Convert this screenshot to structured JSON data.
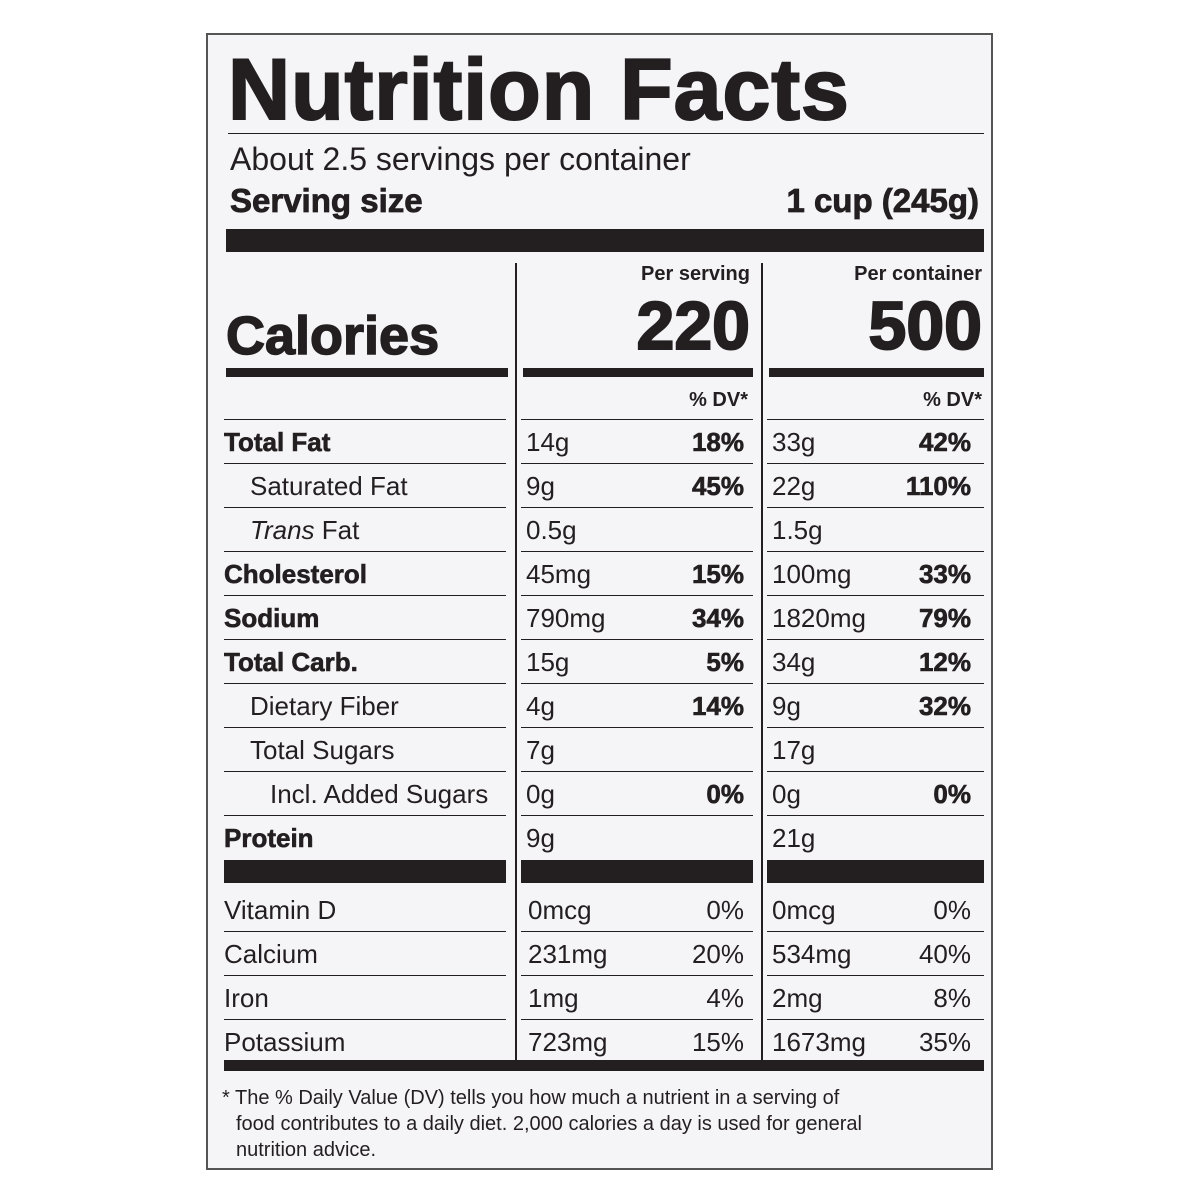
{
  "title": "Nutrition Facts",
  "servings_per_container": "About 2.5 servings per container",
  "serving_size_label": "Serving size",
  "serving_size_value": "1 cup (245g)",
  "calories_label": "Calories",
  "per_serving_label": "Per serving",
  "per_container_label": "Per container",
  "calories_per_serving": "220",
  "calories_per_container": "500",
  "dv_header": "% DV*",
  "nutrients": [
    {
      "name": "Total Fat",
      "bold": true,
      "indent": 0,
      "serving": "14g",
      "serving_dv": "18%",
      "container": "33g",
      "container_dv": "42%"
    },
    {
      "name": "Saturated Fat",
      "bold": false,
      "indent": 1,
      "serving": "9g",
      "serving_dv": "45%",
      "container": "22g",
      "container_dv": "110%"
    },
    {
      "name_italic": "Trans",
      "name": " Fat",
      "bold": false,
      "indent": 1,
      "serving": "0.5g",
      "serving_dv": "",
      "container": "1.5g",
      "container_dv": ""
    },
    {
      "name": "Cholesterol",
      "bold": true,
      "indent": 0,
      "serving": "45mg",
      "serving_dv": "15%",
      "container": "100mg",
      "container_dv": "33%"
    },
    {
      "name": "Sodium",
      "bold": true,
      "indent": 0,
      "serving": "790mg",
      "serving_dv": "34%",
      "container": "1820mg",
      "container_dv": "79%"
    },
    {
      "name": "Total Carb.",
      "bold": true,
      "indent": 0,
      "serving": "15g",
      "serving_dv": "5%",
      "container": "34g",
      "container_dv": "12%"
    },
    {
      "name": "Dietary Fiber",
      "bold": false,
      "indent": 1,
      "serving": "4g",
      "serving_dv": "14%",
      "container": "9g",
      "container_dv": "32%"
    },
    {
      "name": "Total Sugars",
      "bold": false,
      "indent": 1,
      "serving": "7g",
      "serving_dv": "",
      "container": "17g",
      "container_dv": ""
    },
    {
      "name": "Incl. Added Sugars",
      "bold": false,
      "indent": 2,
      "serving": "0g",
      "serving_dv": "0%",
      "container": "0g",
      "container_dv": "0%"
    },
    {
      "name": "Protein",
      "bold": true,
      "indent": 0,
      "serving": "9g",
      "serving_dv": "",
      "container": "21g",
      "container_dv": ""
    }
  ],
  "vitamins": [
    {
      "name": "Vitamin D",
      "serving": "0mcg",
      "serving_dv": "0%",
      "container": "0mcg",
      "container_dv": "0%"
    },
    {
      "name": "Calcium",
      "serving": "231mg",
      "serving_dv": "20%",
      "container": "534mg",
      "container_dv": "40%"
    },
    {
      "name": "Iron",
      "serving": "1mg",
      "serving_dv": "4%",
      "container": "2mg",
      "container_dv": "8%"
    },
    {
      "name": "Potassium",
      "serving": "723mg",
      "serving_dv": "15%",
      "container": "1673mg",
      "container_dv": "35%"
    }
  ],
  "footnote": [
    "* The % Daily Value (DV) tells you how much a nutrient in a serving of",
    "food contributes to a daily diet. 2,000 calories a day is used for general",
    "nutrition advice."
  ]
}
